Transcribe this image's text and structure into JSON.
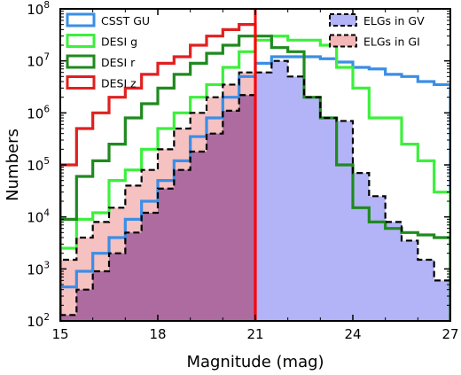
{
  "chart_data": {
    "type": "histogram",
    "title": "",
    "xlabel": "Magnitude (mag)",
    "ylabel": "Numbers",
    "xlim": [
      15,
      27
    ],
    "ylim": [
      100,
      100000000
    ],
    "yscale": "log",
    "x_ticks": [
      15,
      18,
      21,
      24,
      27
    ],
    "y_ticks": [
      {
        "value": 100,
        "label": "10",
        "exp": "2"
      },
      {
        "value": 1000,
        "label": "10",
        "exp": "3"
      },
      {
        "value": 10000,
        "label": "10",
        "exp": "4"
      },
      {
        "value": 100000,
        "label": "10",
        "exp": "5"
      },
      {
        "value": 1000000,
        "label": "10",
        "exp": "6"
      },
      {
        "value": 10000000,
        "label": "10",
        "exp": "7"
      },
      {
        "value": 100000000,
        "label": "10",
        "exp": "8"
      }
    ],
    "bin_edges": [
      15.0,
      15.5,
      16.0,
      16.5,
      17.0,
      17.5,
      18.0,
      18.5,
      19.0,
      19.5,
      20.0,
      20.5,
      21.0,
      21.5,
      22.0,
      22.5,
      23.0,
      23.5,
      24.0,
      24.5,
      25.0,
      25.5,
      26.0,
      26.5,
      27.0
    ],
    "series": [
      {
        "name": "ELGs in GV",
        "style": "filled",
        "fill": "#b3b3f7",
        "stroke": "#000000",
        "dashed": true,
        "values": [
          130,
          400,
          900,
          2000,
          5000,
          12000,
          35000,
          80000,
          180000,
          400000,
          1100000,
          2200000,
          6000000,
          10000000,
          5000000,
          2000000,
          800000,
          700000,
          70000,
          25000,
          8000,
          3500,
          1500,
          600
        ]
      },
      {
        "name": "ELGs in GI",
        "style": "filled",
        "fill": "#f5b6b6",
        "stroke": "#000000",
        "dashed": true,
        "values": [
          1500,
          4000,
          8000,
          15000,
          40000,
          80000,
          200000,
          500000,
          1000000,
          2000000,
          3500000,
          6000000,
          null,
          null,
          null,
          null,
          null,
          null,
          null,
          null,
          null,
          null,
          null,
          null
        ]
      },
      {
        "name": "CSST GU",
        "style": "line",
        "color": "#3a8ee6",
        "values": [
          450,
          900,
          2000,
          4000,
          9000,
          20000,
          50000,
          120000,
          350000,
          800000,
          2000000,
          5000000,
          9000000,
          12000000,
          12000000,
          12000000,
          11000000,
          9500000,
          7500000,
          7000000,
          5500000,
          5000000,
          4000000,
          3500000
        ]
      },
      {
        "name": "DESI g",
        "style": "line",
        "color": "#3cf03c",
        "values": [
          2500,
          9000,
          12000,
          50000,
          80000,
          200000,
          500000,
          1000000,
          2000000,
          3500000,
          7500000,
          15000000,
          25000000,
          30000000,
          25000000,
          25000000,
          20000000,
          7500000,
          3000000,
          800000,
          800000,
          250000,
          120000,
          30000
        ]
      },
      {
        "name": "DESI r",
        "style": "line",
        "color": "#1f8a1f",
        "values": [
          9000,
          60000,
          120000,
          250000,
          800000,
          1500000,
          3000000,
          5500000,
          9000000,
          14000000,
          20000000,
          30000000,
          30000000,
          18000000,
          15000000,
          2000000,
          800000,
          100000,
          15000,
          8000,
          6000,
          5000,
          4500,
          4000
        ]
      },
      {
        "name": "DESI z",
        "style": "line",
        "color": "#e02020",
        "values": [
          100000,
          500000,
          1000000,
          2000000,
          3000000,
          5500000,
          9000000,
          12000000,
          20000000,
          30000000,
          40000000,
          50000000,
          null,
          null,
          null,
          null,
          null,
          null,
          null,
          null,
          null,
          null,
          null,
          null
        ]
      }
    ],
    "vline": {
      "x": 21,
      "color": "#ff0000"
    },
    "legend_left": [
      {
        "name": "CSST GU",
        "color": "#3a8ee6"
      },
      {
        "name": "DESI g",
        "color": "#3cf03c"
      },
      {
        "name": "DESI r",
        "color": "#1f8a1f"
      },
      {
        "name": "DESI z",
        "color": "#e02020"
      }
    ],
    "legend_right": [
      {
        "name": "ELGs in GV",
        "fill": "#b3b3f7"
      },
      {
        "name": "ELGs in GI",
        "fill": "#f5b6b6"
      }
    ],
    "grid": false
  }
}
